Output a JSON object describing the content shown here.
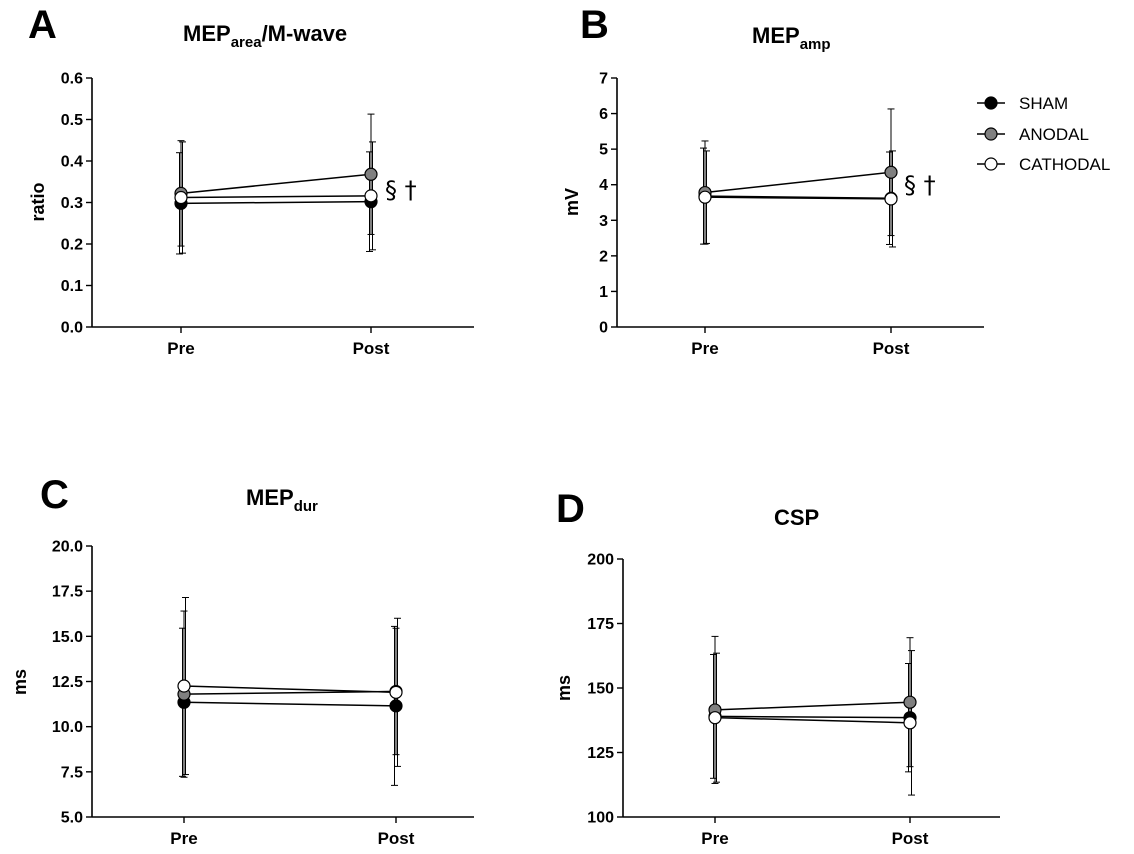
{
  "legend": {
    "items": [
      {
        "label": "SHAM",
        "fill": "#000000"
      },
      {
        "label": "ANODAL",
        "fill": "#808080"
      },
      {
        "label": "CATHODAL",
        "fill": "#ffffff"
      }
    ]
  },
  "series_style": {
    "SHAM": "#000000",
    "ANODAL": "#808080",
    "CATHODAL": "#ffffff"
  },
  "chart_data": [
    {
      "panel": "A",
      "type": "line",
      "title_main": "MEP",
      "title_sub": "area",
      "title_rest": "/M-wave",
      "ylabel": "ratio",
      "categories": [
        "Pre",
        "Post"
      ],
      "ylim": [
        0,
        0.6
      ],
      "yticks": [
        "0.0",
        "0.1",
        "0.2",
        "0.3",
        "0.4",
        "0.5",
        "0.6"
      ],
      "annotation": "§ †",
      "series": [
        {
          "name": "SHAM",
          "values": [
            0.298,
            0.302
          ],
          "errors": [
            0.122,
            0.12
          ]
        },
        {
          "name": "ANODAL",
          "values": [
            0.322,
            0.368
          ],
          "errors": [
            0.127,
            0.145
          ]
        },
        {
          "name": "CATHODAL",
          "values": [
            0.312,
            0.316
          ],
          "errors": [
            0.134,
            0.13
          ]
        }
      ]
    },
    {
      "panel": "B",
      "type": "line",
      "title_main": "MEP",
      "title_sub": "amp",
      "title_rest": "",
      "ylabel": "mV",
      "categories": [
        "Pre",
        "Post"
      ],
      "ylim": [
        0,
        7
      ],
      "yticks": [
        "0",
        "1",
        "2",
        "3",
        "4",
        "5",
        "6",
        "7"
      ],
      "annotation": "§ †",
      "series": [
        {
          "name": "SHAM",
          "values": [
            3.68,
            3.62
          ],
          "errors": [
            1.35,
            1.3
          ]
        },
        {
          "name": "ANODAL",
          "values": [
            3.78,
            4.35
          ],
          "errors": [
            1.45,
            1.78
          ]
        },
        {
          "name": "CATHODAL",
          "values": [
            3.65,
            3.6
          ],
          "errors": [
            1.3,
            1.35
          ]
        }
      ]
    },
    {
      "panel": "C",
      "type": "line",
      "title_main": "MEP",
      "title_sub": "dur",
      "title_rest": "",
      "ylabel": "ms",
      "categories": [
        "Pre",
        "Post"
      ],
      "ylim": [
        5,
        20
      ],
      "yticks": [
        "5.0",
        "7.5",
        "10.0",
        "12.5",
        "15.0",
        "17.5",
        "20.0"
      ],
      "annotation": "",
      "series": [
        {
          "name": "SHAM",
          "values": [
            11.35,
            11.15
          ],
          "errors": [
            4.1,
            4.4
          ]
        },
        {
          "name": "ANODAL",
          "values": [
            11.8,
            11.95
          ],
          "errors": [
            4.6,
            3.5
          ]
        },
        {
          "name": "CATHODAL",
          "values": [
            12.25,
            11.9
          ],
          "errors": [
            4.9,
            4.1
          ]
        }
      ]
    },
    {
      "panel": "D",
      "type": "line",
      "title_main": "CSP",
      "title_sub": "",
      "title_rest": "",
      "ylabel": "ms",
      "categories": [
        "Pre",
        "Post"
      ],
      "ylim": [
        100,
        200
      ],
      "yticks": [
        "100",
        "125",
        "150",
        "175",
        "200"
      ],
      "annotation": "",
      "series": [
        {
          "name": "SHAM",
          "values": [
            139,
            138.5
          ],
          "errors": [
            24,
            21
          ]
        },
        {
          "name": "ANODAL",
          "values": [
            141.5,
            144.5
          ],
          "errors": [
            28.5,
            25
          ]
        },
        {
          "name": "CATHODAL",
          "values": [
            138.5,
            136.5
          ],
          "errors": [
            25,
            28
          ]
        }
      ]
    }
  ]
}
